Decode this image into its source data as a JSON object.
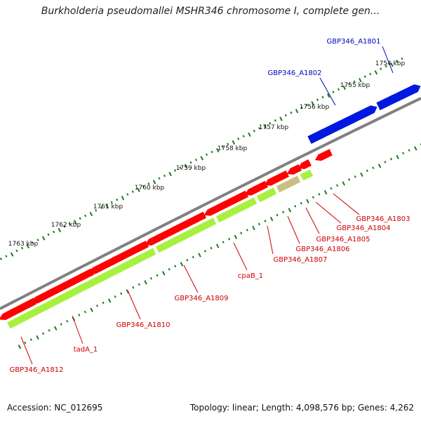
{
  "title": "Burkholderia pseudomallei MSHR346 chromosome I, complete gen...",
  "footer": {
    "accession": "Accession: NC_012695",
    "topology": "Topology: linear; Length: 4,098,576 bp; Genes: 4,262"
  },
  "colors": {
    "forward_gene": "#0018e0",
    "reverse_gene": "#ff0000",
    "cds": "#a8f040",
    "highlight_cds": "#c8c080",
    "backbone": "#808080",
    "ticks": "#1a7a1a",
    "forward_label": "#0000c0",
    "reverse_label": "#cc0000"
  },
  "scale_labels": [
    "1754 kbp",
    "1755 kbp",
    "1756 kbp",
    "1757 kbp",
    "1758 kbp",
    "1759 kbp",
    "1760 kbp",
    "1761 kbp",
    "1762 kbp",
    "1763 kbp"
  ],
  "forward_genes": [
    "GBP346_A1801",
    "GBP346_A1802"
  ],
  "reverse_genes": [
    "GBP346_A1803",
    "GBP346_A1804",
    "GBP346_A1805",
    "GBP346_A1806",
    "GBP346_A1807",
    "cpaB_1",
    "GBP346_A1809",
    "GBP346_A1810",
    "tadA_1",
    "GBP346_A1812"
  ]
}
